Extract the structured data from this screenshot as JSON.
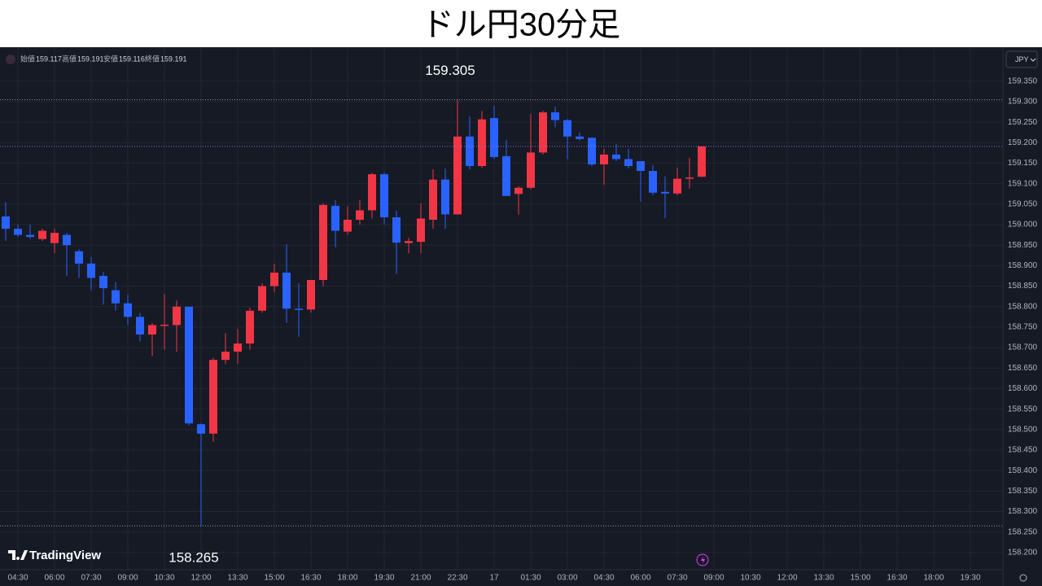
{
  "chart_data": {
    "type": "candlestick",
    "title": "ドル円30分足",
    "currency": "JPY",
    "brand": "TradingView",
    "ohlc_legend": [
      {
        "label": "始値",
        "value": 159.117
      },
      {
        "label": "高値",
        "value": 159.191
      },
      {
        "label": "安値",
        "value": 159.116
      },
      {
        "label": "終値",
        "value": 159.191
      }
    ],
    "x": [
      null,
      "04:30",
      null,
      null,
      "06:00",
      null,
      null,
      "07:30",
      null,
      null,
      "09:00",
      null,
      null,
      "10:30",
      null,
      null,
      "12:00",
      null,
      null,
      "13:30",
      null,
      null,
      "15:00",
      null,
      null,
      "16:30",
      null,
      null,
      "18:00",
      null,
      null,
      "19:30",
      null,
      null,
      "21:00",
      null,
      null,
      "22:30",
      null,
      null,
      "17",
      null,
      null,
      "01:30",
      null,
      null,
      "03:00",
      null,
      null,
      "04:30",
      null,
      null,
      "06:00",
      null,
      null,
      "07:30",
      null,
      null,
      "09:00",
      null,
      null,
      "10:30",
      null,
      null,
      "12:00",
      null,
      null,
      "13:30",
      null,
      null,
      "15:00",
      null,
      null,
      "16:30",
      null,
      null,
      "18:00",
      null,
      null,
      "19:30",
      null
    ],
    "open": [
      159.02,
      158.99,
      158.975,
      158.965,
      158.955,
      158.975,
      158.935,
      158.905,
      158.875,
      158.84,
      158.808,
      158.775,
      158.732,
      158.755,
      158.755,
      158.8,
      158.513,
      158.49,
      158.67,
      158.69,
      158.71,
      158.79,
      158.85,
      158.883,
      158.795,
      158.793,
      158.865,
      159.046,
      158.983,
      159.012,
      159.035,
      159.123,
      159.018,
      158.955,
      158.958,
      159.012,
      159.11,
      159.025,
      159.215,
      159.143,
      159.26,
      159.167,
      159.075,
      159.09,
      159.176,
      159.274,
      159.255,
      159.215,
      159.212,
      159.147,
      159.171,
      159.16,
      159.155,
      159.131,
      159.08,
      159.076,
      159.113,
      159.117,
      null,
      null,
      null,
      null,
      null,
      null,
      null,
      null,
      null,
      null,
      null,
      null,
      null,
      null,
      null,
      null,
      null,
      null,
      null,
      null,
      null,
      null,
      null
    ],
    "high": [
      159.055,
      159.0,
      159.0,
      158.99,
      158.99,
      158.98,
      158.94,
      158.92,
      158.885,
      158.86,
      158.83,
      158.785,
      158.76,
      158.83,
      158.815,
      158.8,
      158.515,
      158.675,
      158.735,
      158.745,
      158.798,
      158.857,
      158.905,
      158.952,
      158.857,
      158.865,
      159.052,
      159.06,
      159.045,
      159.06,
      159.127,
      159.127,
      159.034,
      158.968,
      159.052,
      159.135,
      159.137,
      159.305,
      159.264,
      159.277,
      159.29,
      159.207,
      159.094,
      159.27,
      159.278,
      159.288,
      159.258,
      159.225,
      159.213,
      159.185,
      159.197,
      159.185,
      159.155,
      159.145,
      159.118,
      159.139,
      159.163,
      159.191,
      null,
      null,
      null,
      null,
      null,
      null,
      null,
      null,
      null,
      null,
      null,
      null,
      null,
      null,
      null,
      null,
      null,
      null,
      null,
      null,
      null,
      null,
      null
    ],
    "low": [
      158.96,
      158.97,
      158.965,
      158.96,
      158.93,
      158.875,
      158.87,
      158.84,
      158.805,
      158.79,
      158.755,
      158.715,
      158.68,
      158.695,
      158.69,
      158.51,
      158.265,
      158.47,
      158.66,
      158.66,
      158.695,
      158.785,
      158.835,
      158.76,
      158.726,
      158.785,
      158.85,
      158.945,
      158.975,
      159.0,
      159.015,
      159.0,
      158.88,
      158.93,
      158.93,
      158.99,
      158.99,
      159.025,
      159.135,
      159.138,
      159.16,
      159.07,
      159.025,
      159.087,
      159.171,
      159.238,
      159.16,
      159.205,
      159.143,
      159.097,
      159.155,
      159.137,
      159.056,
      159.072,
      159.016,
      159.072,
      159.088,
      159.116,
      null,
      null,
      null,
      null,
      null,
      null,
      null,
      null,
      null,
      null,
      null,
      null,
      null,
      null,
      null,
      null,
      null,
      null,
      null,
      null,
      null,
      null,
      null
    ],
    "close": [
      158.99,
      158.975,
      158.97,
      158.985,
      158.98,
      158.95,
      158.905,
      158.87,
      158.845,
      158.808,
      158.775,
      158.732,
      158.755,
      158.756,
      158.8,
      158.515,
      158.49,
      158.67,
      158.69,
      158.71,
      158.79,
      158.85,
      158.883,
      158.795,
      158.793,
      158.865,
      159.048,
      158.985,
      159.012,
      159.035,
      159.123,
      159.018,
      158.956,
      158.96,
      159.015,
      159.11,
      159.025,
      159.215,
      159.143,
      159.257,
      159.165,
      159.07,
      159.09,
      159.176,
      159.274,
      159.255,
      159.215,
      159.209,
      159.147,
      159.171,
      159.16,
      159.143,
      159.131,
      159.078,
      159.076,
      159.112,
      159.115,
      159.191,
      null,
      null,
      null,
      null,
      null,
      null,
      null,
      null,
      null,
      null,
      null,
      null,
      null,
      null,
      null,
      null,
      null,
      null,
      null,
      null,
      null,
      null,
      null
    ],
    "up_color": "#f23645",
    "down_color": "#2962ff",
    "annotations": [
      159.305,
      158.265
    ],
    "ylim": [
      158.158,
      159.433
    ],
    "yticks": [
      {
        "value": 159.35,
        "label": "159.350"
      },
      {
        "value": 159.3,
        "label": "159.300"
      },
      {
        "value": 159.25,
        "label": "159.250"
      },
      {
        "value": 159.2,
        "label": "159.200"
      },
      {
        "value": 159.15,
        "label": "159.150"
      },
      {
        "value": 159.1,
        "label": "159.100"
      },
      {
        "value": 159.05,
        "label": "159.050"
      },
      {
        "value": 159.0,
        "label": "159.000"
      },
      {
        "value": 158.95,
        "label": "158.950"
      },
      {
        "value": 158.9,
        "label": "158.900"
      },
      {
        "value": 158.85,
        "label": "158.850"
      },
      {
        "value": 158.8,
        "label": "158.800"
      },
      {
        "value": 158.75,
        "label": "158.750"
      },
      {
        "value": 158.7,
        "label": "158.700"
      },
      {
        "value": 158.65,
        "label": "158.650"
      },
      {
        "value": 158.6,
        "label": "158.600"
      },
      {
        "value": 158.55,
        "label": "158.550"
      },
      {
        "value": 158.5,
        "label": "158.500"
      },
      {
        "value": 158.45,
        "label": "158.450"
      },
      {
        "value": 158.4,
        "label": "158.400"
      },
      {
        "value": 158.35,
        "label": "158.350"
      },
      {
        "value": 158.3,
        "label": "158.300"
      },
      {
        "value": 158.25,
        "label": "158.250"
      },
      {
        "value": 158.2,
        "label": "158.200"
      }
    ],
    "grid": true
  }
}
